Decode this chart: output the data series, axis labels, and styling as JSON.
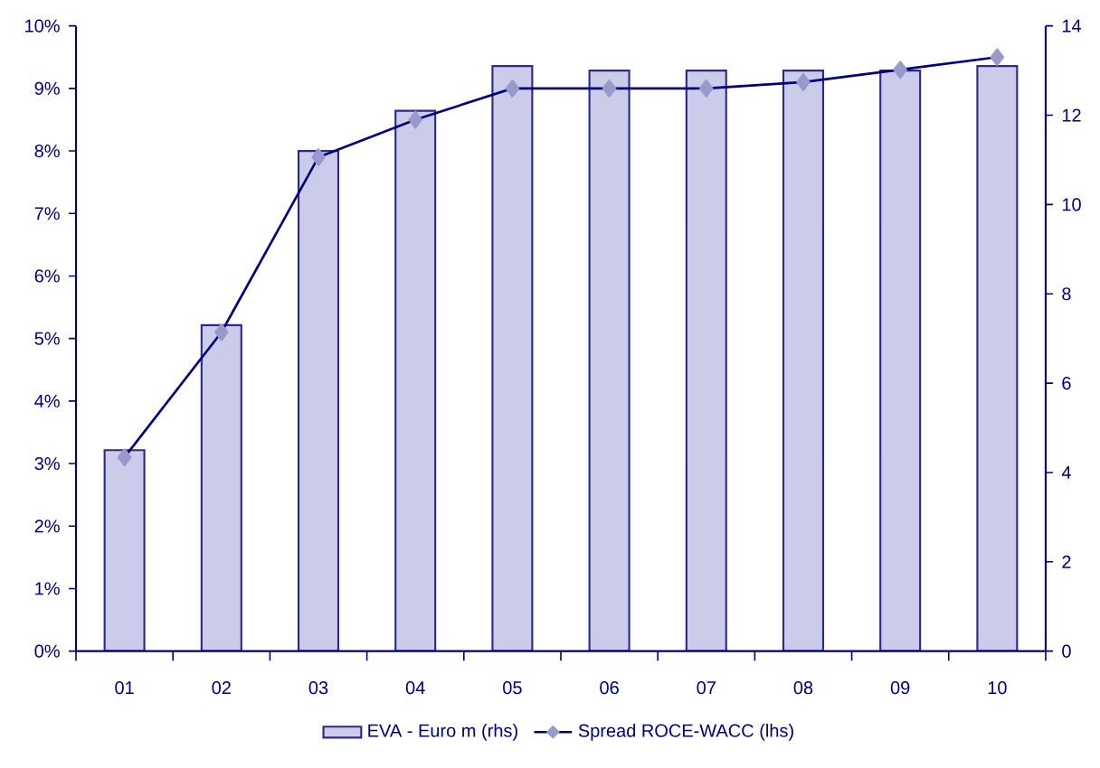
{
  "chart_data": {
    "type": "bar",
    "categories": [
      "01",
      "02",
      "03",
      "04",
      "05",
      "06",
      "07",
      "08",
      "09",
      "10"
    ],
    "series": [
      {
        "name": "EVA - Euro m (rhs)",
        "axis": "y2",
        "color": "#ccccea",
        "values": [
          4.5,
          7.3,
          11.2,
          12.1,
          13.1,
          13.0,
          13.0,
          13.0,
          13.0,
          13.1
        ]
      },
      {
        "name": "Spread ROCE-WACC (lhs)",
        "type": "line",
        "axis": "y",
        "color": "#000080",
        "marker": "diamond",
        "values": [
          3.1,
          5.1,
          7.9,
          8.5,
          9.0,
          9.0,
          9.0,
          9.1,
          9.3,
          9.5
        ]
      }
    ],
    "ylim": [
      0,
      10
    ],
    "yticks": [
      {
        "value": 0,
        "label": "0%"
      },
      {
        "value": 1,
        "label": "1%"
      },
      {
        "value": 2,
        "label": "2%"
      },
      {
        "value": 3,
        "label": "3%"
      },
      {
        "value": 4,
        "label": "4%"
      },
      {
        "value": 5,
        "label": "5%"
      },
      {
        "value": 6,
        "label": "6%"
      },
      {
        "value": 7,
        "label": "7%"
      },
      {
        "value": 8,
        "label": "8%"
      },
      {
        "value": 9,
        "label": "9%"
      },
      {
        "value": 10,
        "label": "10%"
      }
    ],
    "y2lim": [
      0,
      14
    ],
    "y2ticks": [
      0,
      2,
      4,
      6,
      8,
      10,
      12,
      14
    ],
    "grid": false,
    "legend": "bottom"
  }
}
